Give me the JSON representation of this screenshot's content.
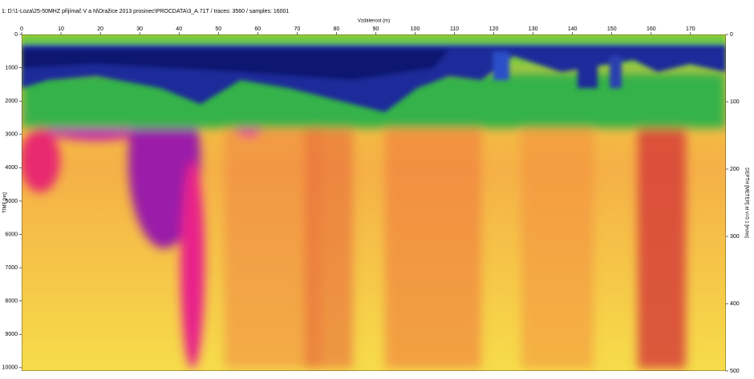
{
  "chart_data": {
    "type": "heatmap",
    "title": "1: D:\\1-Loza\\25-50MHZ přijímač V a N\\Dražice 2013 prosinec\\PROCDATA\\3_A.71T / traces: 3560 / samples: 16001",
    "x_label": "Vzdálenost (m)",
    "y_label": "TIME [ns]",
    "y2_label": "DEPTH [METER] at v=0.1 [m/ns]",
    "xlim": [
      0,
      179
    ],
    "xticks": [
      0,
      10,
      20,
      30,
      40,
      50,
      60,
      70,
      80,
      90,
      100,
      110,
      120,
      130,
      140,
      150,
      160,
      170
    ],
    "ylim": [
      0,
      10100
    ],
    "yticks": [
      0,
      1000,
      2000,
      3000,
      4000,
      5000,
      6000,
      7000,
      8000,
      9000,
      10000
    ],
    "y2lim": [
      0,
      500
    ],
    "y2ticks": [
      0,
      100,
      200,
      300,
      400,
      500
    ]
  }
}
